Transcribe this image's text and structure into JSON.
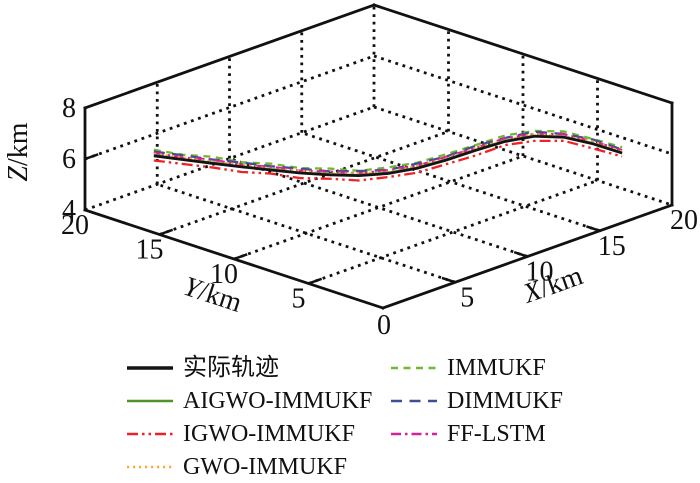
{
  "chart_data": {
    "type": "line3d",
    "title": "",
    "grid": "dotted",
    "background": "#ffffff",
    "line_color": "#111111",
    "axes": {
      "x": {
        "var": "X",
        "unit": "/km",
        "label": "X/km",
        "range": [
          0,
          20
        ],
        "ticks": [
          0,
          5,
          10,
          15,
          20
        ]
      },
      "y": {
        "var": "Y",
        "unit": "/km",
        "label": "Y/km",
        "range": [
          0,
          20
        ],
        "ticks": [
          0,
          5,
          10,
          15,
          20
        ]
      },
      "z": {
        "var": "Z",
        "unit": "/km",
        "label": "Z/km",
        "range": [
          4,
          8
        ],
        "ticks": [
          4,
          6,
          8
        ]
      }
    },
    "path": {
      "x": [
        2.6,
        3.58,
        4.56,
        5.54,
        6.53,
        7.51,
        8.49,
        9.47,
        10.45,
        11.43,
        12.41,
        13.39,
        14.38,
        15.36,
        16.34,
        17.32,
        18.3
      ],
      "y": [
        17.9,
        16.89,
        15.88,
        14.86,
        13.85,
        12.84,
        11.83,
        10.81,
        9.8,
        8.79,
        7.78,
        6.76,
        5.75,
        4.74,
        3.73,
        2.71,
        1.7
      ]
    },
    "series": [
      {
        "key": "actual-trajectory",
        "name": "实际轨迹",
        "color": "#141414",
        "style": "solid",
        "width": 2.7,
        "z": [
          6.0,
          5.85,
          5.7,
          5.56,
          5.43,
          5.31,
          5.23,
          5.2,
          5.28,
          5.48,
          5.8,
          6.18,
          6.52,
          6.72,
          6.68,
          6.42,
          6.05
        ]
      },
      {
        "key": "aigwo-immukf",
        "name": "AIGWO-IMMUKF",
        "color": "#4f9427",
        "style": "solid",
        "width": 2.3,
        "z": [
          6.03,
          5.86,
          5.73,
          5.57,
          5.46,
          5.32,
          5.26,
          5.22,
          5.31,
          5.5,
          5.83,
          6.2,
          6.55,
          6.74,
          6.7,
          6.44,
          6.07
        ]
      },
      {
        "key": "igwo-immukf",
        "name": "IGWO-IMMUKF",
        "color": "#ee2224",
        "style": "dashdotdot",
        "width": 2.3,
        "z": [
          5.82,
          5.68,
          5.54,
          5.36,
          5.29,
          5.11,
          5.08,
          5.01,
          5.14,
          5.31,
          5.64,
          5.98,
          6.38,
          6.54,
          6.54,
          6.24,
          5.92
        ]
      },
      {
        "key": "gwo-immukf",
        "name": "GWO-IMMUKF",
        "color": "#ffa838",
        "style": "dotted",
        "width": 2.3,
        "z": [
          6.08,
          5.93,
          5.76,
          5.64,
          5.48,
          5.4,
          5.28,
          5.29,
          5.34,
          5.57,
          5.86,
          6.27,
          6.56,
          6.81,
          6.72,
          6.51,
          6.11
        ]
      },
      {
        "key": "immukf",
        "name": "IMMUKF",
        "color": "#6eb92d",
        "style": "dashed_short",
        "width": 2.3,
        "z": [
          6.24,
          6.04,
          5.96,
          5.74,
          5.68,
          5.5,
          5.48,
          5.39,
          5.52,
          5.7,
          6.03,
          6.39,
          6.76,
          6.93,
          6.91,
          6.61,
          6.28
        ]
      },
      {
        "key": "dimmukf",
        "name": "DIMMUKF",
        "color": "#3e4f93",
        "style": "dashed_long",
        "width": 2.3,
        "z": [
          6.17,
          6.02,
          5.85,
          5.73,
          5.58,
          5.48,
          5.37,
          5.38,
          5.42,
          5.67,
          5.94,
          6.36,
          6.66,
          6.9,
          6.81,
          6.59,
          6.19
        ]
      },
      {
        "key": "ff-lstm",
        "name": "FF-LSTM",
        "color": "#d6219c",
        "style": "dashdot",
        "width": 2.3,
        "z": [
          6.12,
          5.93,
          5.84,
          5.64,
          5.56,
          5.4,
          5.36,
          5.29,
          5.41,
          5.58,
          5.93,
          6.27,
          6.65,
          6.81,
          6.8,
          6.51,
          6.17
        ]
      }
    ],
    "legend": {
      "position": "bottom",
      "columns": [
        [
          0,
          1,
          2,
          3
        ],
        [
          4,
          5,
          6
        ]
      ]
    }
  }
}
